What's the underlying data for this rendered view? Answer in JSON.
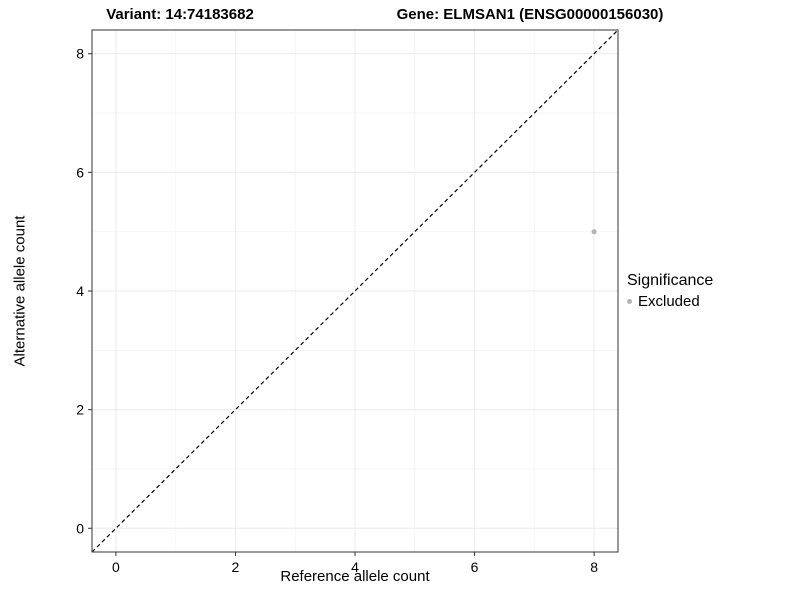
{
  "header": {
    "variant_label": "Variant: 14:74183682",
    "gene_label": "Gene: ELMSAN1 (ENSG00000156030)"
  },
  "legend": {
    "title": "Significance",
    "items": [
      {
        "label": "Excluded",
        "color": "#b4b4b4"
      }
    ]
  },
  "chart_data": {
    "type": "scatter",
    "title": "",
    "xlabel": "Reference allele count",
    "ylabel": "Alternative allele count",
    "xlim": [
      -0.4,
      8.4
    ],
    "ylim": [
      -0.4,
      8.4
    ],
    "xticks": [
      0,
      2,
      4,
      6,
      8
    ],
    "yticks": [
      0,
      2,
      4,
      6,
      8
    ],
    "grid": true,
    "legend_position": "right",
    "series": [
      {
        "name": "Excluded",
        "color": "#b4b4b4",
        "points": [
          {
            "x": 8,
            "y": 5
          }
        ]
      }
    ],
    "reference_line": {
      "type": "identity",
      "style": "dashed",
      "color": "#000000"
    }
  },
  "colors": {
    "point": "#b4b4b4",
    "panel_border": "#333333",
    "tick": "#333333",
    "grid_major": "#ebebeb",
    "grid_minor": "#f6f6f6"
  }
}
